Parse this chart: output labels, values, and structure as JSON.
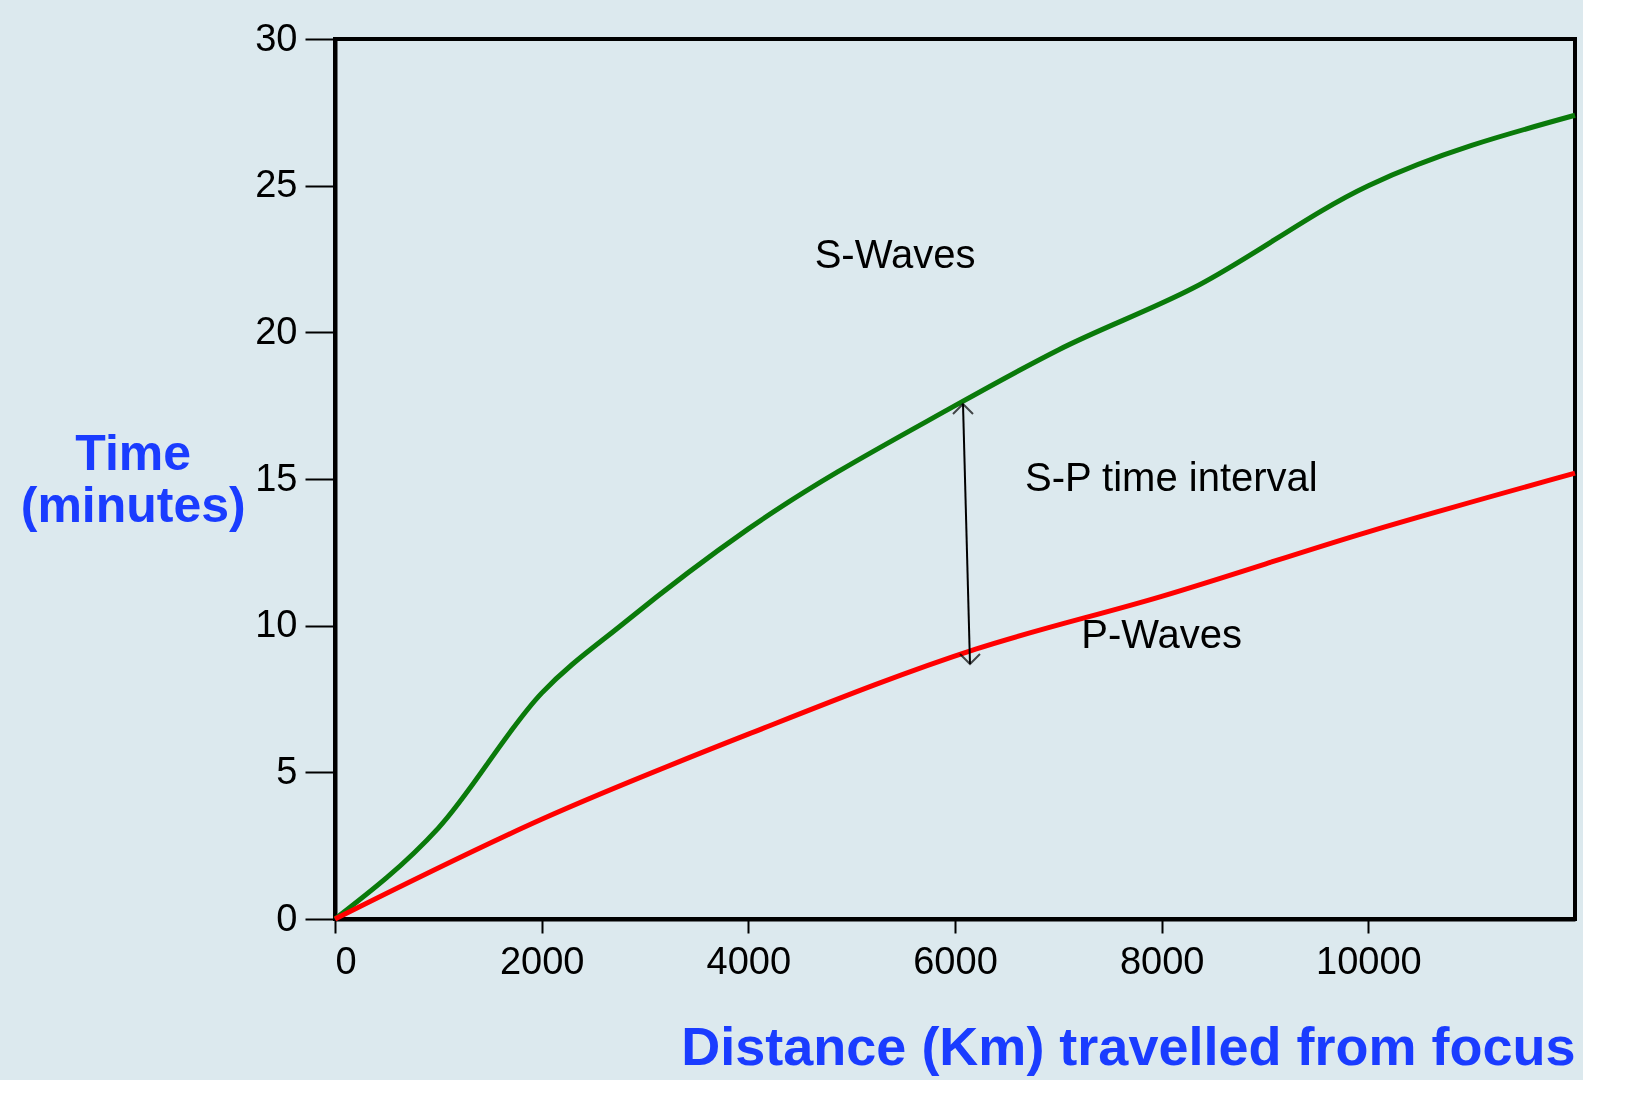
{
  "chart_data": {
    "type": "line",
    "xlabel": "Distance (Km) travelled from focus",
    "ylabel": "Time\n(minutes)",
    "xlim": [
      0,
      12000
    ],
    "ylim": [
      0,
      30
    ],
    "xticks": [
      0,
      2000,
      4000,
      6000,
      8000,
      10000
    ],
    "yticks": [
      0,
      5,
      10,
      15,
      20,
      25,
      30
    ],
    "grid": false,
    "legend": false,
    "marker": "none",
    "line_style": "solid",
    "series": [
      {
        "name": "S-Waves",
        "color": "#0a7a0a",
        "x": [
          0,
          1000,
          2000,
          2800,
          4000,
          6000,
          7000,
          8300,
          10000,
          12000
        ],
        "values": [
          0,
          3.1,
          7.7,
          10.1,
          13.3,
          17.5,
          19.4,
          21.5,
          25.0,
          27.4
        ]
      },
      {
        "name": "P-Waves",
        "color": "#ff0000",
        "x": [
          0,
          2000,
          4000,
          6200,
          8000,
          10000,
          12000
        ],
        "values": [
          0,
          3.4,
          6.3,
          9.2,
          11.0,
          13.2,
          15.2
        ]
      }
    ],
    "annotations": [
      "S-P time interval"
    ]
  }
}
